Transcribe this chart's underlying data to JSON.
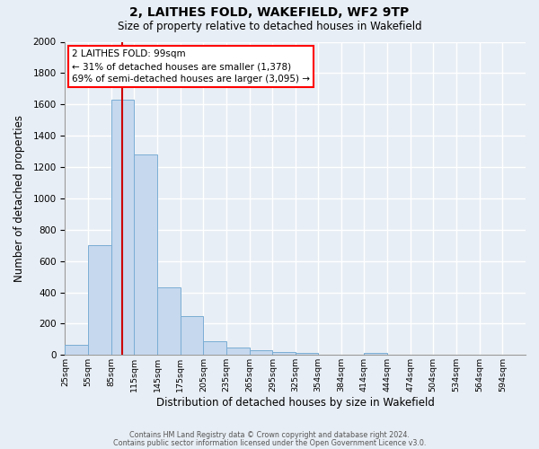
{
  "title1": "2, LAITHES FOLD, WAKEFIELD, WF2 9TP",
  "title2": "Size of property relative to detached houses in Wakefield",
  "xlabel": "Distribution of detached houses by size in Wakefield",
  "ylabel": "Number of detached properties",
  "bar_color": "#c5d8ee",
  "bar_edge_color": "#7aadd4",
  "fig_bg_color": "#e8eef5",
  "plot_bg_color": "#e8eef5",
  "grid_color": "#ffffff",
  "redline_color": "#cc0000",
  "redline_x": 99,
  "annotation_title": "2 LAITHES FOLD: 99sqm",
  "annotation_line1": "← 31% of detached houses are smaller (1,378)",
  "annotation_line2": "69% of semi-detached houses are larger (3,095) →",
  "bins": [
    25,
    55,
    85,
    115,
    145,
    175,
    205,
    235,
    265,
    295,
    325,
    354,
    384,
    414,
    444,
    474,
    504,
    534,
    564,
    594,
    624
  ],
  "counts": [
    65,
    700,
    1630,
    1280,
    430,
    250,
    90,
    50,
    30,
    20,
    15,
    0,
    0,
    15,
    0,
    0,
    0,
    0,
    0,
    0
  ],
  "ylim": [
    0,
    2000
  ],
  "yticks": [
    0,
    200,
    400,
    600,
    800,
    1000,
    1200,
    1400,
    1600,
    1800,
    2000
  ],
  "footer1": "Contains HM Land Registry data © Crown copyright and database right 2024.",
  "footer2": "Contains public sector information licensed under the Open Government Licence v3.0."
}
